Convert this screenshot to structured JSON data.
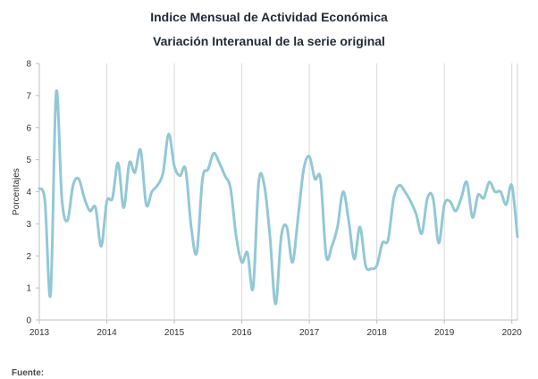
{
  "chart_data": {
    "type": "line",
    "title": "Indice Mensual de  Actividad Económica",
    "subtitle": "Variación Interanual de la serie original",
    "ylabel": "Porcentajes",
    "xlabel": "",
    "ylim": [
      0,
      8
    ],
    "yticks": [
      "0",
      "1",
      "2",
      "3",
      "4",
      "5",
      "6",
      "7",
      "8"
    ],
    "xlim": [
      "2013-01",
      "2020-02"
    ],
    "xticks": [
      "2013",
      "2014",
      "2015",
      "2016",
      "2017",
      "2018",
      "2019",
      "2020"
    ],
    "grid": "vertical",
    "line_color": "#92c8d6",
    "x": [
      "2013-01",
      "2013-02",
      "2013-03",
      "2013-04",
      "2013-05",
      "2013-06",
      "2013-07",
      "2013-08",
      "2013-09",
      "2013-10",
      "2013-11",
      "2013-12",
      "2014-01",
      "2014-02",
      "2014-03",
      "2014-04",
      "2014-05",
      "2014-06",
      "2014-07",
      "2014-08",
      "2014-09",
      "2014-10",
      "2014-11",
      "2014-12",
      "2015-01",
      "2015-02",
      "2015-03",
      "2015-04",
      "2015-05",
      "2015-06",
      "2015-07",
      "2015-08",
      "2015-09",
      "2015-10",
      "2015-11",
      "2015-12",
      "2016-01",
      "2016-02",
      "2016-03",
      "2016-04",
      "2016-05",
      "2016-06",
      "2016-07",
      "2016-08",
      "2016-09",
      "2016-10",
      "2016-11",
      "2016-12",
      "2017-01",
      "2017-02",
      "2017-03",
      "2017-04",
      "2017-05",
      "2017-06",
      "2017-07",
      "2017-08",
      "2017-09",
      "2017-10",
      "2017-11",
      "2017-12",
      "2018-01",
      "2018-02",
      "2018-03",
      "2018-04",
      "2018-05",
      "2018-06",
      "2018-07",
      "2018-08",
      "2018-09",
      "2018-10",
      "2018-11",
      "2018-12",
      "2019-01",
      "2019-02",
      "2019-03",
      "2019-04",
      "2019-05",
      "2019-06",
      "2019-07",
      "2019-08",
      "2019-09",
      "2019-10",
      "2019-11",
      "2019-12",
      "2020-01",
      "2020-02"
    ],
    "values": [
      4.1,
      3.7,
      0.8,
      7.1,
      3.8,
      3.1,
      4.2,
      4.4,
      3.8,
      3.4,
      3.5,
      2.3,
      3.7,
      3.8,
      4.9,
      3.5,
      4.9,
      4.6,
      5.3,
      3.6,
      4.0,
      4.2,
      4.6,
      5.8,
      4.8,
      4.5,
      4.7,
      2.9,
      2.1,
      4.4,
      4.7,
      5.2,
      4.9,
      4.5,
      4.1,
      2.6,
      1.8,
      2.1,
      1.0,
      4.3,
      4.2,
      2.6,
      0.5,
      2.6,
      2.9,
      1.8,
      3.2,
      4.7,
      5.1,
      4.4,
      4.4,
      2.0,
      2.3,
      2.9,
      4.0,
      3.1,
      1.9,
      2.9,
      1.7,
      1.6,
      1.7,
      2.4,
      2.5,
      3.8,
      4.2,
      4.0,
      3.7,
      3.3,
      2.7,
      3.8,
      3.8,
      2.4,
      3.6,
      3.7,
      3.4,
      3.8,
      4.3,
      3.2,
      3.9,
      3.8,
      4.3,
      4.0,
      4.0,
      3.6,
      4.2,
      2.6
    ]
  },
  "footer": {
    "source_label": "Fuente:"
  }
}
